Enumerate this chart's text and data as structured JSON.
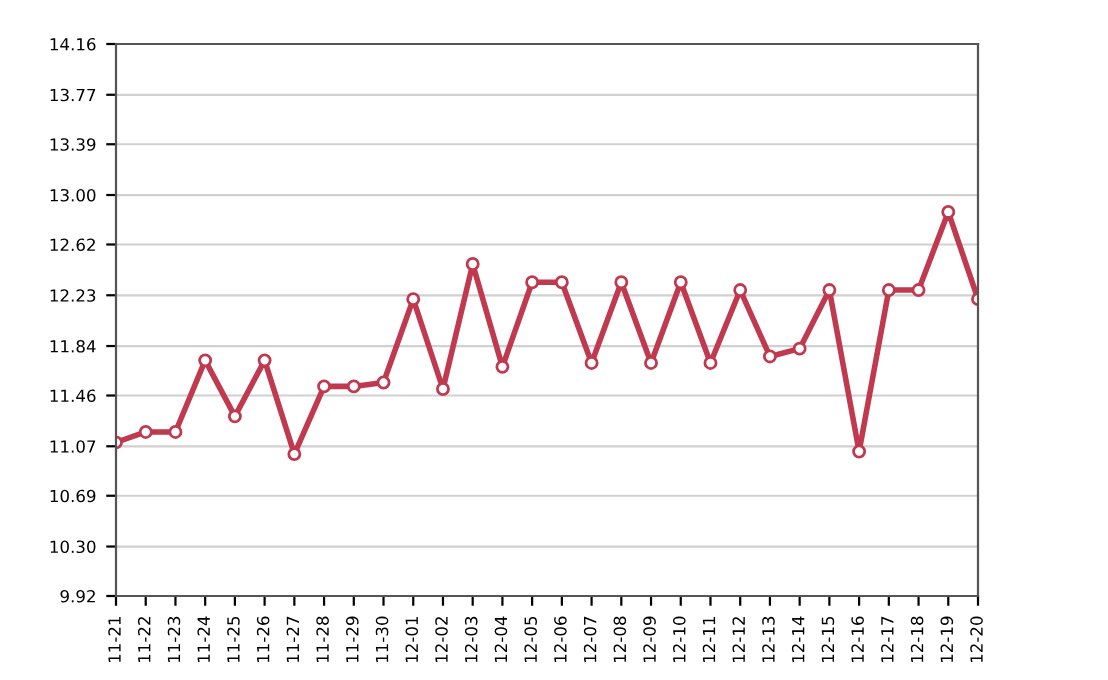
{
  "chart_data": {
    "type": "line",
    "categories": [
      "11-21",
      "11-22",
      "11-23",
      "11-24",
      "11-25",
      "11-26",
      "11-27",
      "11-28",
      "11-29",
      "11-30",
      "12-01",
      "12-02",
      "12-03",
      "12-04",
      "12-05",
      "12-06",
      "12-07",
      "12-08",
      "12-09",
      "12-10",
      "12-11",
      "12-12",
      "12-13",
      "12-14",
      "12-15",
      "12-16",
      "12-17",
      "12-18",
      "12-19",
      "12-20"
    ],
    "series": [
      {
        "color": "#c0394f",
        "values": [
          11.1,
          11.18,
          11.18,
          11.73,
          11.3,
          11.73,
          11.01,
          11.53,
          11.53,
          11.56,
          12.2,
          11.51,
          12.47,
          11.68,
          12.33,
          12.33,
          11.71,
          12.33,
          11.71,
          12.33,
          11.71,
          12.27,
          11.76,
          11.82,
          12.27,
          11.03,
          12.27,
          12.27,
          12.87,
          12.2
        ]
      }
    ],
    "ylim": [
      9.92,
      14.16
    ],
    "yticks": [
      {
        "value": 9.92,
        "label": "9.92"
      },
      {
        "value": 10.3,
        "label": "10.30"
      },
      {
        "value": 10.69,
        "label": "10.69"
      },
      {
        "value": 11.07,
        "label": "11.07"
      },
      {
        "value": 11.46,
        "label": "11.46"
      },
      {
        "value": 11.84,
        "label": "11.84"
      },
      {
        "value": 12.23,
        "label": "12.23"
      },
      {
        "value": 12.62,
        "label": "12.62"
      },
      {
        "value": 13.0,
        "label": "13.00"
      },
      {
        "value": 13.39,
        "label": "13.39"
      },
      {
        "value": 13.77,
        "label": "13.77"
      },
      {
        "value": 14.16,
        "label": "14.16"
      }
    ],
    "grid": "y",
    "marker": "circle",
    "line_style": "solid",
    "legend": false
  }
}
